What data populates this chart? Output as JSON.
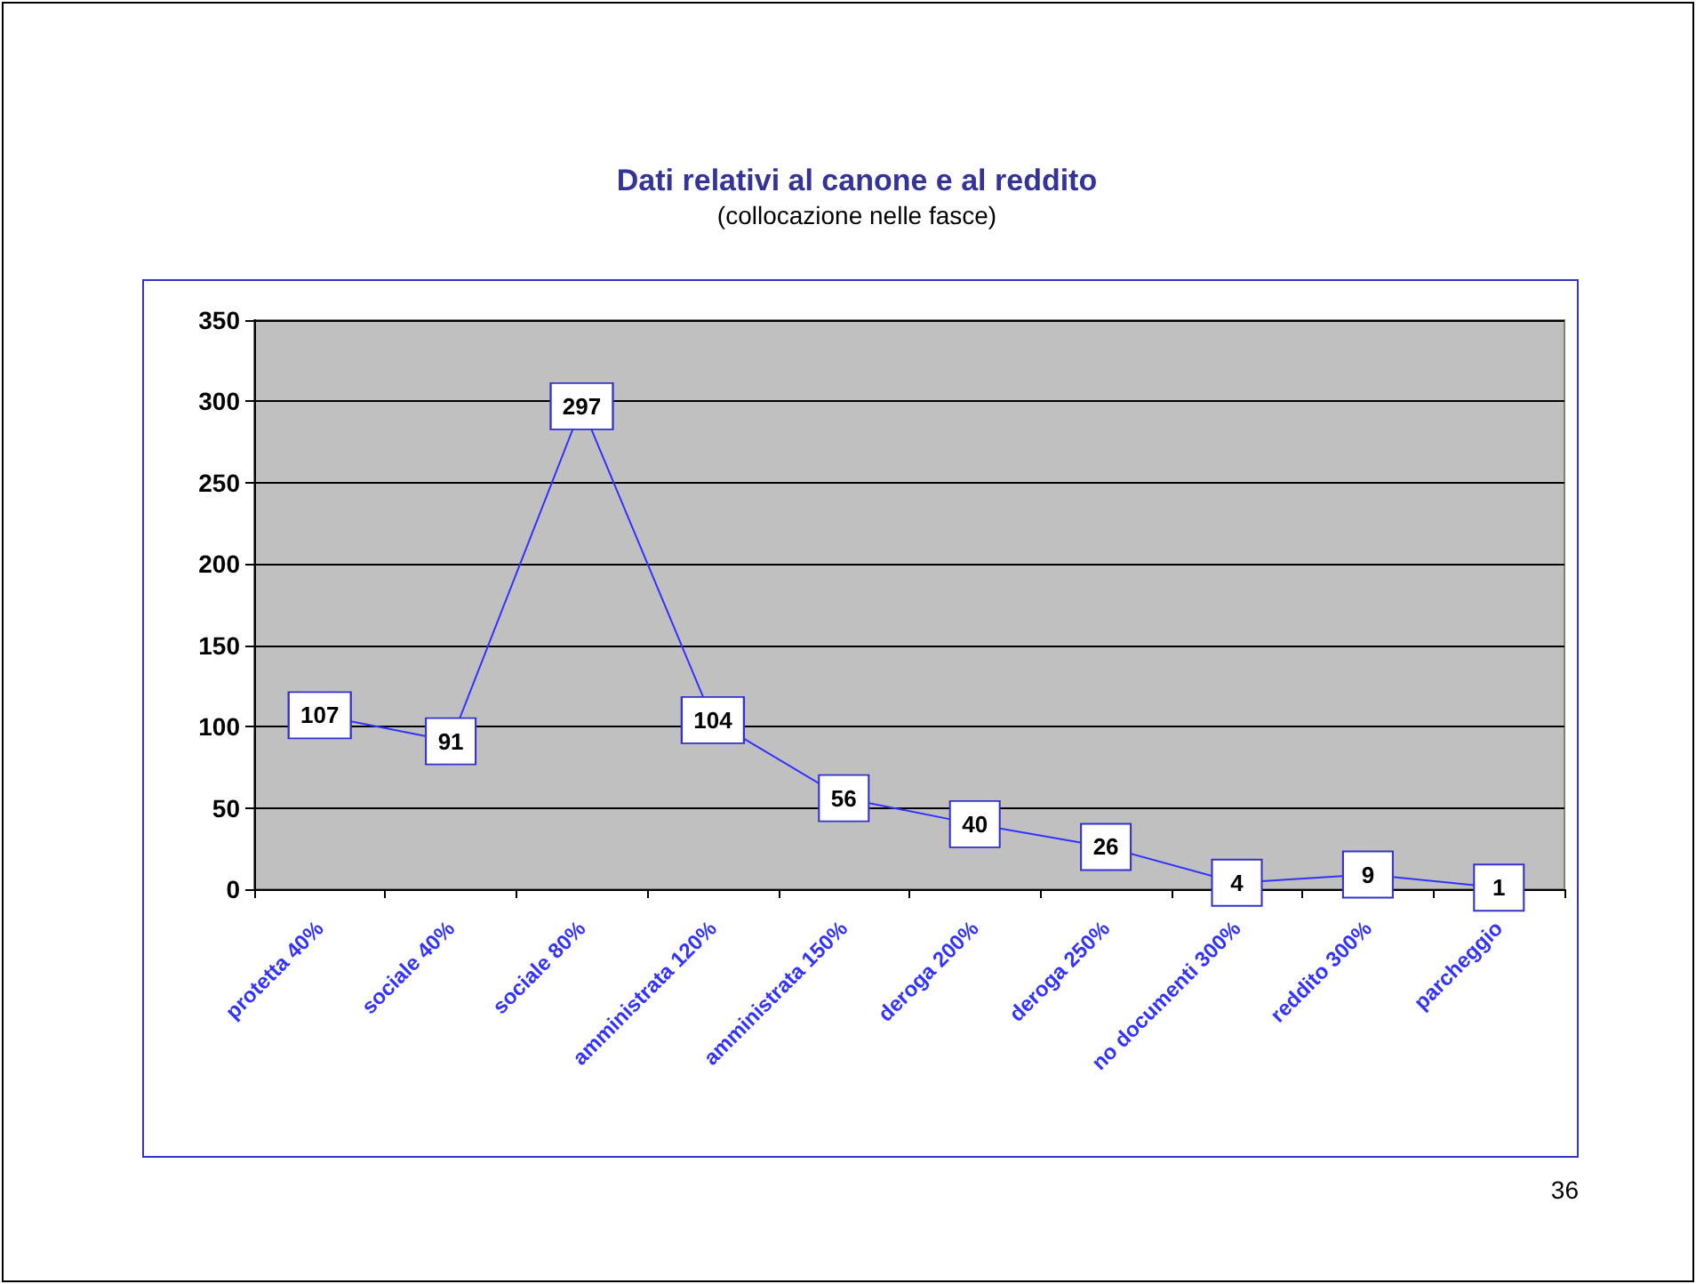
{
  "chart_data": {
    "type": "line",
    "title": "Dati relativi al canone e al reddito",
    "subtitle": "(collocazione nelle fasce)",
    "categories": [
      "protetta 40%",
      "sociale 40%",
      "sociale 80%",
      "amministrata 120%",
      "amministrata 150%",
      "deroga 200%",
      "deroga 250%",
      "no documenti 300%",
      "reddito 300%",
      "parcheggio"
    ],
    "series": [
      {
        "color": "#3333ff",
        "values": [
          107,
          91,
          297,
          104,
          56,
          40,
          26,
          4,
          9,
          1
        ]
      }
    ],
    "ylim": [
      0,
      350
    ],
    "yticks": [
      0,
      50,
      100,
      150,
      200,
      250,
      300,
      350
    ],
    "grid": "y",
    "marker": "square",
    "line_style": "solid",
    "data_labels": true,
    "annotations": [
      "36"
    ]
  }
}
